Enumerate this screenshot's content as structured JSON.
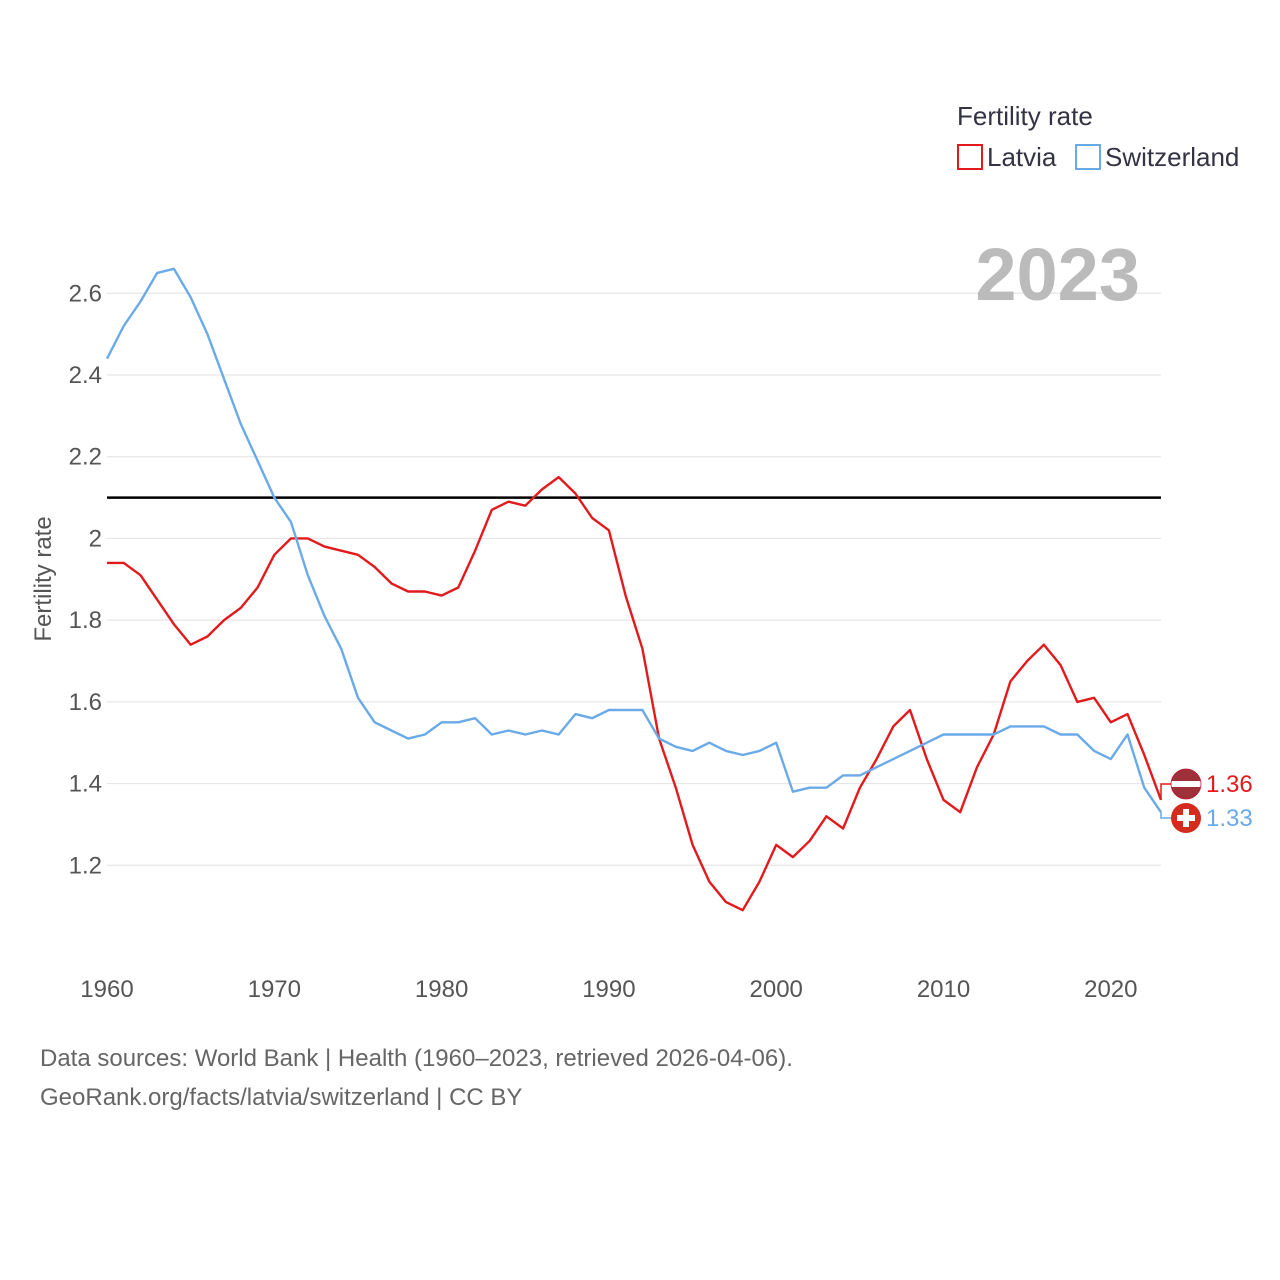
{
  "chart_data": {
    "type": "line",
    "legend_title": "Fertility rate",
    "ylabel": "Fertility rate",
    "year_display": "2023",
    "xlim": [
      1960,
      2023
    ],
    "ylim": [
      1.0,
      2.75
    ],
    "x_ticks": [
      1960,
      1970,
      1980,
      1990,
      2000,
      2010,
      2020
    ],
    "y_ticks": [
      1.2,
      1.4,
      1.6,
      1.8,
      2.0,
      2.2,
      2.4,
      2.6
    ],
    "y_tick_labels": [
      "1.2",
      "1.4",
      "1.6",
      "1.8",
      "2",
      "2.2",
      "2.4",
      "2.6"
    ],
    "reference_line": 2.1,
    "x": [
      1960,
      1961,
      1962,
      1963,
      1964,
      1965,
      1966,
      1967,
      1968,
      1969,
      1970,
      1971,
      1972,
      1973,
      1974,
      1975,
      1976,
      1977,
      1978,
      1979,
      1980,
      1981,
      1982,
      1983,
      1984,
      1985,
      1986,
      1987,
      1988,
      1989,
      1990,
      1991,
      1992,
      1993,
      1994,
      1995,
      1996,
      1997,
      1998,
      1999,
      2000,
      2001,
      2002,
      2003,
      2004,
      2005,
      2006,
      2007,
      2008,
      2009,
      2010,
      2011,
      2012,
      2013,
      2014,
      2015,
      2016,
      2017,
      2018,
      2019,
      2020,
      2021,
      2022,
      2023
    ],
    "series": [
      {
        "name": "Latvia",
        "color": "#e31a1c",
        "end_label": "1.36",
        "flag": "latvia-flag",
        "values": [
          1.94,
          1.94,
          1.91,
          1.85,
          1.79,
          1.74,
          1.76,
          1.8,
          1.83,
          1.88,
          1.96,
          2.0,
          2.0,
          1.98,
          1.97,
          1.96,
          1.93,
          1.89,
          1.87,
          1.87,
          1.86,
          1.88,
          1.97,
          2.07,
          2.09,
          2.08,
          2.12,
          2.15,
          2.11,
          2.05,
          2.02,
          1.86,
          1.73,
          1.51,
          1.39,
          1.25,
          1.16,
          1.11,
          1.09,
          1.16,
          1.25,
          1.22,
          1.26,
          1.32,
          1.29,
          1.39,
          1.46,
          1.54,
          1.58,
          1.46,
          1.36,
          1.33,
          1.44,
          1.52,
          1.65,
          1.7,
          1.74,
          1.69,
          1.6,
          1.61,
          1.55,
          1.57,
          1.47,
          1.36
        ]
      },
      {
        "name": "Switzerland",
        "color": "#6aaae8",
        "end_label": "1.33",
        "flag": "switzerland-flag",
        "values": [
          2.44,
          2.52,
          2.58,
          2.65,
          2.66,
          2.59,
          2.5,
          2.39,
          2.28,
          2.19,
          2.1,
          2.04,
          1.91,
          1.81,
          1.73,
          1.61,
          1.55,
          1.53,
          1.51,
          1.52,
          1.55,
          1.55,
          1.56,
          1.52,
          1.53,
          1.52,
          1.53,
          1.52,
          1.57,
          1.56,
          1.58,
          1.58,
          1.58,
          1.51,
          1.49,
          1.48,
          1.5,
          1.48,
          1.47,
          1.48,
          1.5,
          1.38,
          1.39,
          1.39,
          1.42,
          1.42,
          1.44,
          1.46,
          1.48,
          1.5,
          1.52,
          1.52,
          1.52,
          1.52,
          1.54,
          1.54,
          1.54,
          1.52,
          1.52,
          1.48,
          1.46,
          1.52,
          1.39,
          1.33
        ]
      }
    ]
  },
  "source": {
    "line1": "Data sources: World Bank | Health (1960–2023, retrieved 2026-04-06).",
    "line2": "GeoRank.org/facts/latvia/switzerland | CC BY"
  }
}
